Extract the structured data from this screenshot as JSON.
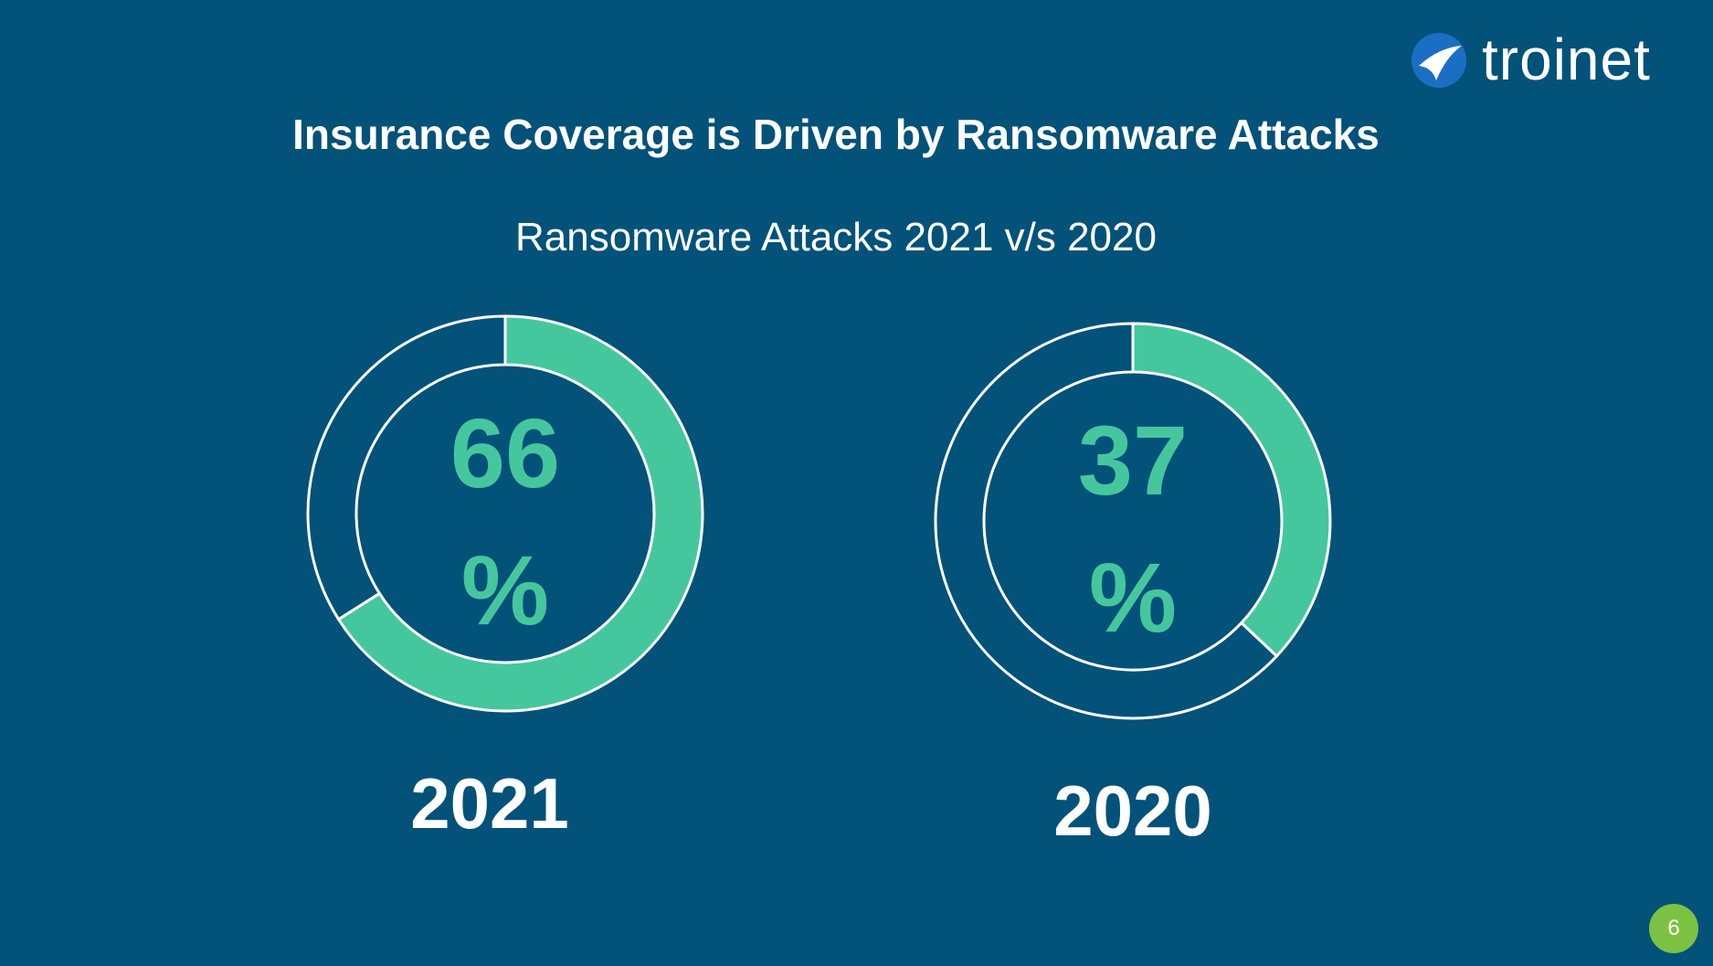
{
  "slide": {
    "title": "Insurance Coverage is Driven by Ransomware Attacks",
    "subtitle": "Ransomware Attacks 2021 v/s 2020",
    "logo": "troinet",
    "page_number": "6"
  },
  "chart_data": [
    {
      "type": "donut",
      "title": "2021",
      "values": [
        66,
        34
      ],
      "value_labels": [
        "66 %",
        null
      ],
      "colors": [
        "#45c79e",
        "none"
      ]
    },
    {
      "type": "donut",
      "title": "2020",
      "values": [
        37,
        63
      ],
      "value_labels": [
        "37 %",
        null
      ],
      "colors": [
        "#45c79e",
        "none"
      ]
    }
  ]
}
